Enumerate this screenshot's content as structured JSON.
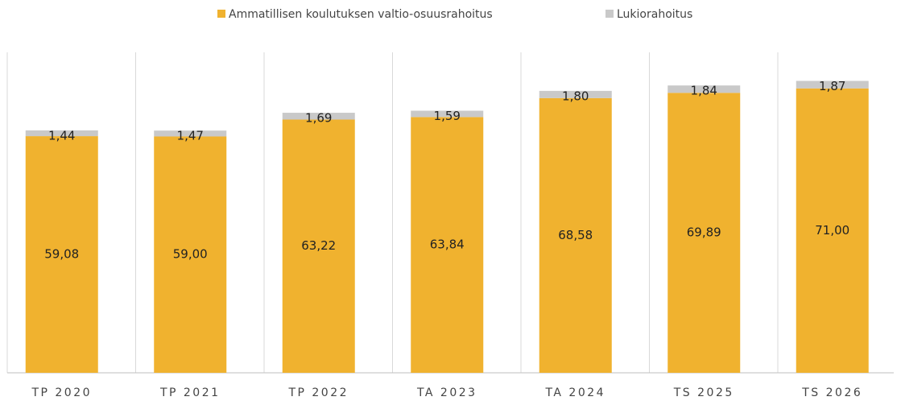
{
  "chart_data": {
    "type": "stacked_bar",
    "categories": [
      "TP 2020",
      "TP 2021",
      "TP 2022",
      "TA 2023",
      "TA 2024",
      "TS 2025",
      "TS 2026"
    ],
    "series": [
      {
        "name": "Ammatillisen koulutuksen valtio-osuusrahoitus",
        "color": "#f0b22f",
        "values": [
          59.08,
          59.0,
          63.22,
          63.84,
          68.58,
          69.89,
          71.0
        ],
        "value_labels": [
          "59,08",
          "59,00",
          "63,22",
          "63,84",
          "68,58",
          "69,89",
          "71,00"
        ]
      },
      {
        "name": "Lukiorahoitus",
        "color": "#c9c9c9",
        "values": [
          1.44,
          1.47,
          1.69,
          1.59,
          1.8,
          1.84,
          1.87
        ],
        "value_labels": [
          "1,44",
          "1,47",
          "1,69",
          "1,59",
          "1,80",
          "1,84",
          "1,87"
        ]
      }
    ],
    "ylim": [
      0,
      80
    ],
    "legend": "top"
  }
}
